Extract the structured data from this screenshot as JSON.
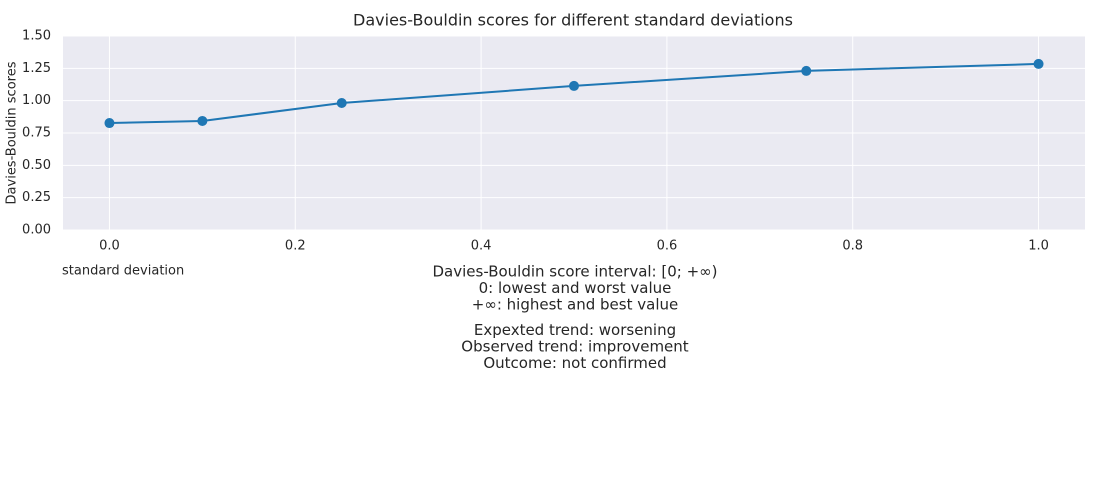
{
  "chart_data": {
    "type": "line",
    "title": "Davies-Bouldin scores for different standard deviations",
    "x_label": "standard deviation",
    "y_label": "Davies-Bouldin scores",
    "x": [
      0,
      0.1,
      0.25,
      0.5,
      0.75,
      1.0
    ],
    "series": [
      {
        "name": "Davies-Bouldin scores",
        "color": "#1f77b4",
        "values": [
          0.827,
          0.843,
          0.982,
          1.114,
          1.23,
          1.284
        ]
      }
    ],
    "xlim": [
      -0.05,
      1.05
    ],
    "ylim": [
      0,
      1.5
    ],
    "xticks": [
      {
        "value": 0,
        "label": "0.0"
      },
      {
        "value": 0.2,
        "label": "0.2"
      },
      {
        "value": 0.4,
        "label": "0.4"
      },
      {
        "value": 0.6,
        "label": "0.6"
      },
      {
        "value": 0.8,
        "label": "0.8"
      },
      {
        "value": 1,
        "label": "1.0"
      }
    ],
    "yticks": [
      {
        "value": 0,
        "label": "0.00"
      },
      {
        "value": 0.25,
        "label": "0.25"
      },
      {
        "value": 0.5,
        "label": "0.50"
      },
      {
        "value": 0.75,
        "label": "0.75"
      },
      {
        "value": 1,
        "label": "1.00"
      },
      {
        "value": 1.25,
        "label": "1.25"
      },
      {
        "value": 1.5,
        "label": "1.50"
      }
    ],
    "grid": true,
    "annotations": [
      [
        "Davies-Bouldin score interval: [0; +∞)",
        "0: lowest and worst value",
        "+∞: highest and best value"
      ],
      [
        "Expexted trend: worsening",
        "Observed trend: improvement",
        "Outcome: not confirmed"
      ]
    ]
  }
}
